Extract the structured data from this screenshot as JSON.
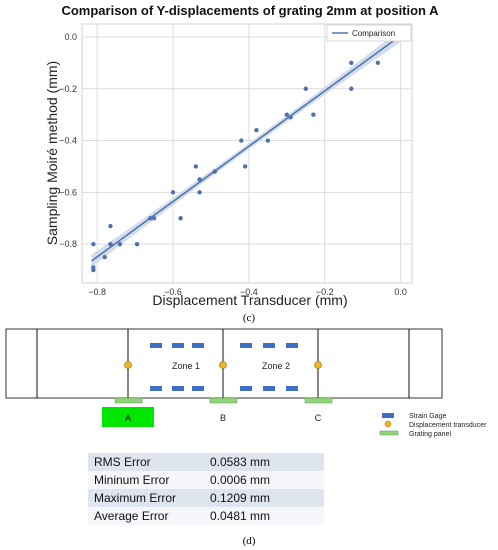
{
  "chart_data": {
    "type": "scatter",
    "title": "Comparison of Y-displacements of grating 2mm at position A",
    "xlabel": "Displacement Transducer (mm)",
    "ylabel": "Sampling Moiré method (mm)",
    "xlim": [
      -0.84,
      0.03
    ],
    "ylim": [
      -0.95,
      0.05
    ],
    "xticks": [
      -0.8,
      -0.6,
      -0.4,
      -0.2,
      0.0
    ],
    "yticks": [
      0.0,
      -0.2,
      -0.4,
      -0.6,
      -0.8
    ],
    "xtick_labels": [
      "−0.8",
      "−0.6",
      "−0.4",
      "−0.2",
      "0.0"
    ],
    "ytick_labels": [
      "0.0",
      "−0.2",
      "−0.4",
      "−0.6",
      "−0.8"
    ],
    "grid": true,
    "legend": {
      "position": "top-right",
      "entries": [
        "Comparison"
      ]
    },
    "points": [
      {
        "x": -0.81,
        "y": -0.8
      },
      {
        "x": -0.81,
        "y": -0.89
      },
      {
        "x": -0.81,
        "y": -0.9
      },
      {
        "x": -0.78,
        "y": -0.85
      },
      {
        "x": -0.765,
        "y": -0.8
      },
      {
        "x": -0.765,
        "y": -0.73
      },
      {
        "x": -0.74,
        "y": -0.8
      },
      {
        "x": -0.695,
        "y": -0.8
      },
      {
        "x": -0.66,
        "y": -0.7
      },
      {
        "x": -0.65,
        "y": -0.7
      },
      {
        "x": -0.6,
        "y": -0.6
      },
      {
        "x": -0.58,
        "y": -0.7
      },
      {
        "x": -0.54,
        "y": -0.5
      },
      {
        "x": -0.53,
        "y": -0.55
      },
      {
        "x": -0.53,
        "y": -0.6
      },
      {
        "x": -0.49,
        "y": -0.52
      },
      {
        "x": -0.42,
        "y": -0.4
      },
      {
        "x": -0.41,
        "y": -0.5
      },
      {
        "x": -0.38,
        "y": -0.36
      },
      {
        "x": -0.35,
        "y": -0.4
      },
      {
        "x": -0.3,
        "y": -0.3
      },
      {
        "x": -0.29,
        "y": -0.31
      },
      {
        "x": -0.25,
        "y": -0.2
      },
      {
        "x": -0.23,
        "y": -0.3
      },
      {
        "x": -0.13,
        "y": -0.1
      },
      {
        "x": -0.13,
        "y": -0.2
      },
      {
        "x": -0.06,
        "y": -0.1
      }
    ],
    "fit_line": {
      "x": [
        -0.815,
        0.0
      ],
      "y": [
        -0.865,
        0.005
      ]
    },
    "colors": {
      "points": "#4c72b0",
      "line": "#4c72b0",
      "band": "#c8d3e6",
      "grid": "#dcdcdc"
    }
  },
  "captions": {
    "c": "(c)",
    "d": "(d)"
  },
  "schematic": {
    "zones": [
      "Zone 1",
      "Zone 2"
    ],
    "positions": [
      "A",
      "B",
      "C"
    ],
    "legend": [
      "Strain Gage",
      "Displacement transducer",
      "Grating panel"
    ],
    "colors": {
      "strain_gage": "#3d6fc4",
      "transducer": "#f0b323",
      "grating": "#8fd47a",
      "highlight": "#00e600"
    }
  },
  "error_table": [
    {
      "label": "RMS Error",
      "value": "0.0583 mm"
    },
    {
      "label": "Mininum Error",
      "value": "0.0006 mm"
    },
    {
      "label": "Maximum Error",
      "value": "0.1209 mm"
    },
    {
      "label": "Average Error",
      "value": "0.0481 mm"
    }
  ]
}
